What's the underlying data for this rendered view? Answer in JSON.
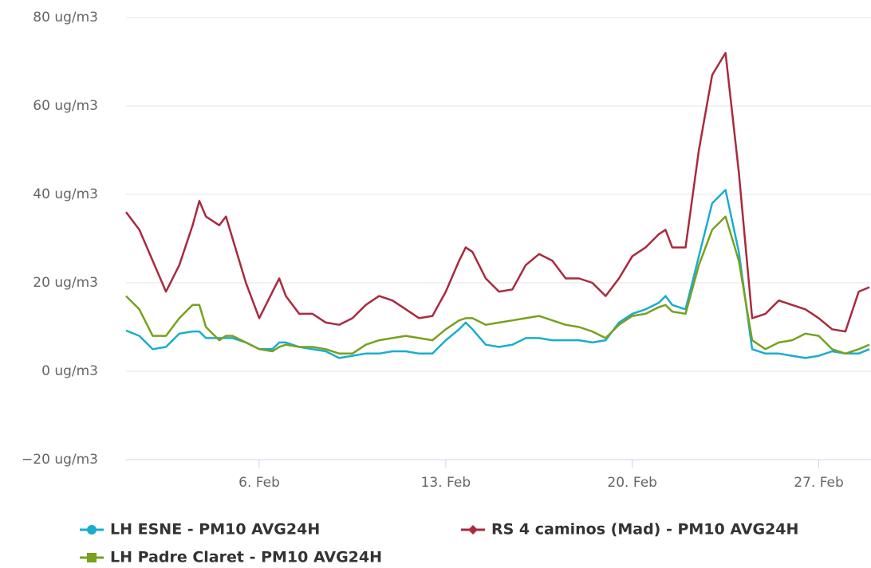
{
  "chart_data": {
    "type": "line",
    "x": [
      1,
      1.5,
      2,
      2.5,
      3,
      3.5,
      3.75,
      4,
      4.5,
      4.75,
      5,
      5.5,
      6,
      6.5,
      6.75,
      7,
      7.5,
      8,
      8.5,
      9,
      9.5,
      10,
      10.5,
      11,
      11.5,
      12,
      12.5,
      13,
      13.5,
      13.75,
      14,
      14.5,
      15,
      15.5,
      16,
      16.5,
      17,
      17.5,
      18,
      18.5,
      19,
      19.5,
      20,
      20.5,
      21,
      21.25,
      21.5,
      22,
      22.5,
      23,
      23.5,
      24,
      24.5,
      25,
      25.5,
      26,
      26.5,
      27,
      27.5,
      28,
      28.5,
      28.9
    ],
    "series": [
      {
        "name": "LH ESNE - PM10 AVG24H",
        "color": "#1aadce",
        "marker": "circle",
        "values": [
          9.2,
          8,
          5,
          5.5,
          8.5,
          9,
          9,
          7.5,
          7.5,
          7.5,
          7.5,
          6.5,
          5,
          5,
          6.5,
          6.5,
          5.5,
          5,
          4.5,
          3,
          3.5,
          4,
          4,
          4.5,
          4.5,
          4,
          4,
          7,
          9.5,
          11,
          9.5,
          6,
          5.5,
          6,
          7.5,
          7.5,
          7,
          7,
          7,
          6.5,
          7,
          11,
          13,
          14,
          15.5,
          17,
          15,
          14,
          26,
          38,
          41,
          27,
          5,
          4,
          4,
          3.5,
          3,
          3.5,
          4.5,
          4,
          4,
          5
        ]
      },
      {
        "name": "RS 4 caminos (Mad) - PM10 AVG24H",
        "color": "#aa2a3e",
        "marker": "diamond",
        "values": [
          36,
          32,
          25,
          18,
          24,
          33,
          38.5,
          35,
          33,
          35,
          30,
          20,
          12,
          18,
          21,
          17,
          13,
          13,
          11,
          10.5,
          12,
          15,
          17,
          16,
          14,
          12,
          12.5,
          18,
          25,
          28,
          27,
          21,
          18,
          18.5,
          24,
          26.5,
          25,
          21,
          21,
          20,
          17,
          21,
          26,
          28,
          31,
          32,
          28,
          28,
          50,
          67,
          72,
          45,
          12,
          13,
          16,
          15,
          14,
          12,
          9.5,
          9,
          18,
          19
        ]
      },
      {
        "name": "LH Padre Claret - PM10 AVG24H",
        "color": "#77a11e",
        "marker": "square",
        "values": [
          17,
          14,
          8,
          8,
          12,
          15,
          15,
          10,
          7,
          8,
          8,
          6.5,
          5,
          4.5,
          5.5,
          6,
          5.5,
          5.5,
          5,
          4,
          4,
          6,
          7,
          7.5,
          8,
          7.5,
          7,
          9.5,
          11.5,
          12,
          12,
          10.5,
          11,
          11.5,
          12,
          12.5,
          11.5,
          10.5,
          10,
          9,
          7.5,
          10.5,
          12.5,
          13,
          14.5,
          15,
          13.5,
          13,
          24,
          32,
          35,
          25,
          7,
          5,
          6.5,
          7,
          8.5,
          8,
          5,
          4,
          5,
          6
        ]
      }
    ],
    "xlim": [
      1,
      28.96
    ],
    "xticks": [
      {
        "value": 6,
        "label": "6. Feb"
      },
      {
        "value": 13,
        "label": "13. Feb"
      },
      {
        "value": 20,
        "label": "20. Feb"
      },
      {
        "value": 27,
        "label": "27. Feb"
      }
    ],
    "ylim": [
      -20,
      80
    ],
    "yticks": [
      {
        "value": -20,
        "label": "−20 ug/m3"
      },
      {
        "value": 0,
        "label": "0 ug/m3"
      },
      {
        "value": 20,
        "label": "20 ug/m3"
      },
      {
        "value": 40,
        "label": "40 ug/m3"
      },
      {
        "value": 60,
        "label": "60 ug/m3"
      },
      {
        "value": 80,
        "label": "80 ug/m3"
      }
    ],
    "grid": true
  }
}
